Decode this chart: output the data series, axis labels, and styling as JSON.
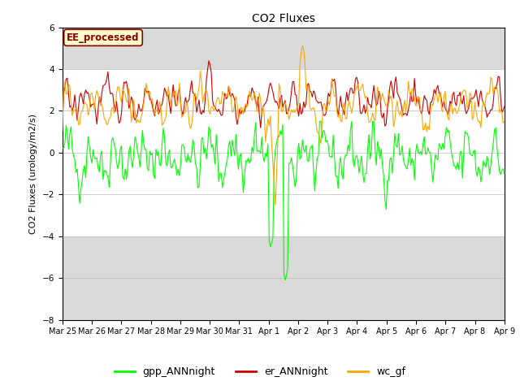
{
  "title": "CO2 Fluxes",
  "ylabel": "CO2 Fluxes (urology/m2/s)",
  "ylim": [
    -8,
    6
  ],
  "yticks": [
    -8,
    -6,
    -4,
    -2,
    0,
    2,
    4,
    6
  ],
  "background_color": "#ffffff",
  "outer_bg_color": "#d9d9d9",
  "inner_bg_color": "#ffffff",
  "annotation_text": "EE_processed",
  "annotation_color": "#8b0000",
  "annotation_bg": "#ffffcc",
  "annotation_border": "#8b0000",
  "gpp_color": "#00ff00",
  "er_color": "#cc0000",
  "wc_color": "#ffa500",
  "legend_labels": [
    "gpp_ANNnight",
    "er_ANNnight",
    "wc_gf"
  ],
  "n_points": 384,
  "seed": 42
}
